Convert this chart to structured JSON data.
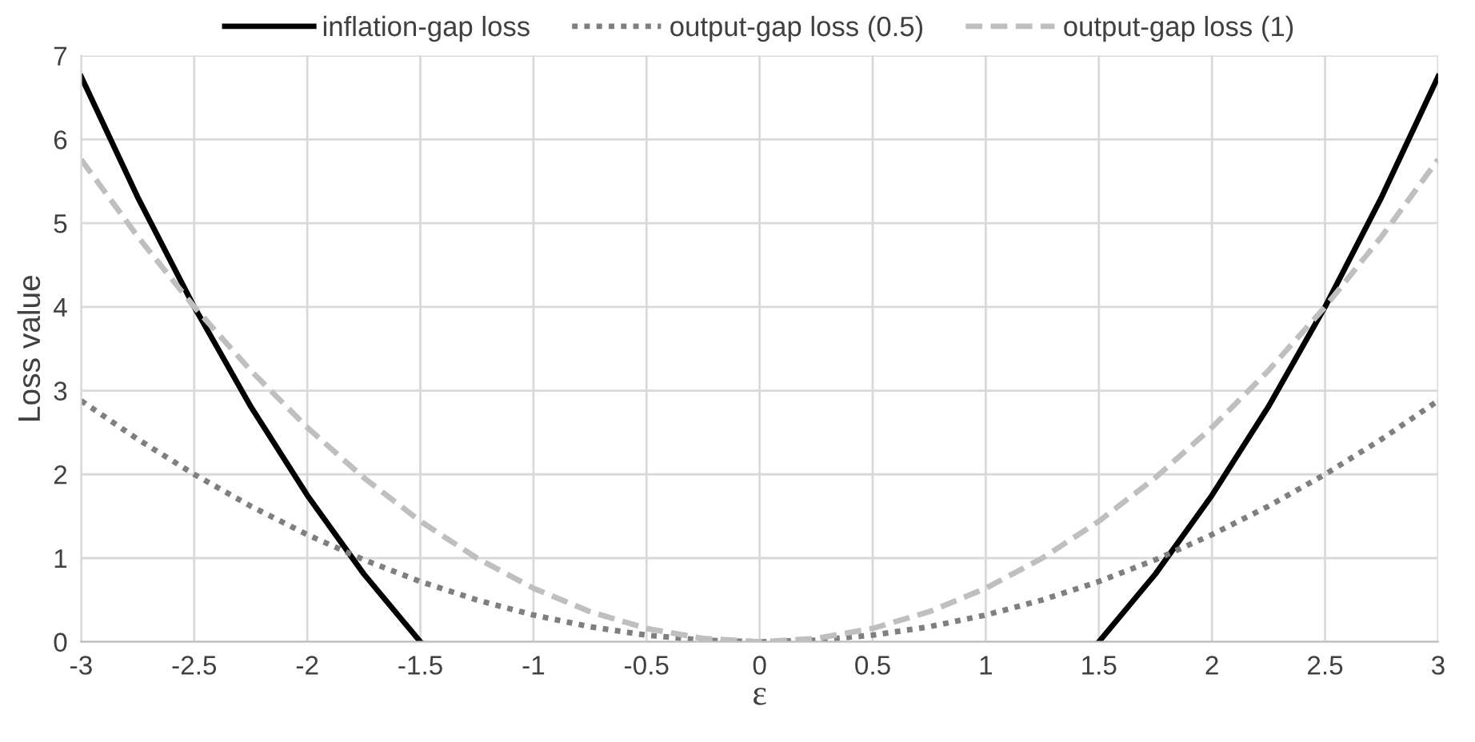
{
  "chart_data": {
    "type": "line",
    "xlabel": "ε",
    "ylabel": "Loss value",
    "xlim": [
      -3,
      3
    ],
    "xticks": [
      -3,
      -2.5,
      -2,
      -1.5,
      -1,
      -0.5,
      0,
      0.5,
      1,
      1.5,
      2,
      2.5,
      3
    ],
    "ylim": [
      0,
      7
    ],
    "yticks": [
      0,
      1,
      2,
      3,
      4,
      5,
      6,
      7
    ],
    "grid": true,
    "legend": "top",
    "marker": "none",
    "series": [
      {
        "name": "inflation-gap loss",
        "color": "#000000",
        "line_style": "solid",
        "x": [
          -3,
          -2.75,
          -2.5,
          -2.25,
          -2,
          -1.75,
          -1.5,
          0,
          1.5,
          1.75,
          2,
          2.25,
          2.5,
          2.75,
          3
        ],
        "values": [
          6.75,
          5.31,
          4,
          2.81,
          1.75,
          0.81,
          0,
          null,
          0,
          0.81,
          1.75,
          2.81,
          4,
          5.31,
          6.75
        ]
      },
      {
        "name": "output-gap loss (0.5)",
        "color": "#7f7f7f",
        "line_style": "dotted",
        "x": [
          -3,
          -2.75,
          -2.5,
          -2.25,
          -2,
          -1.75,
          -1.5,
          -1.25,
          -1,
          -0.75,
          -0.5,
          -0.25,
          0,
          0.25,
          0.5,
          0.75,
          1,
          1.25,
          1.5,
          1.75,
          2,
          2.25,
          2.5,
          2.75,
          3
        ],
        "values": [
          2.88,
          2.42,
          2,
          1.62,
          1.28,
          0.98,
          0.72,
          0.5,
          0.32,
          0.18,
          0.08,
          0.02,
          0,
          0.02,
          0.08,
          0.18,
          0.32,
          0.5,
          0.72,
          0.98,
          1.28,
          1.62,
          2,
          2.42,
          2.88
        ]
      },
      {
        "name": "output-gap loss (1)",
        "color": "#bfbfbf",
        "line_style": "dashed",
        "x": [
          -3,
          -2.75,
          -2.5,
          -2.25,
          -2,
          -1.75,
          -1.5,
          -1.25,
          -1,
          -0.75,
          -0.5,
          -0.25,
          0,
          0.25,
          0.5,
          0.75,
          1,
          1.25,
          1.5,
          1.75,
          2,
          2.25,
          2.5,
          2.75,
          3
        ],
        "values": [
          5.76,
          4.84,
          4,
          3.24,
          2.56,
          1.96,
          1.44,
          1,
          0.64,
          0.36,
          0.16,
          0.04,
          0,
          0.04,
          0.16,
          0.36,
          0.64,
          1,
          1.44,
          1.96,
          2.56,
          3.24,
          4,
          4.84,
          5.76
        ]
      }
    ]
  }
}
